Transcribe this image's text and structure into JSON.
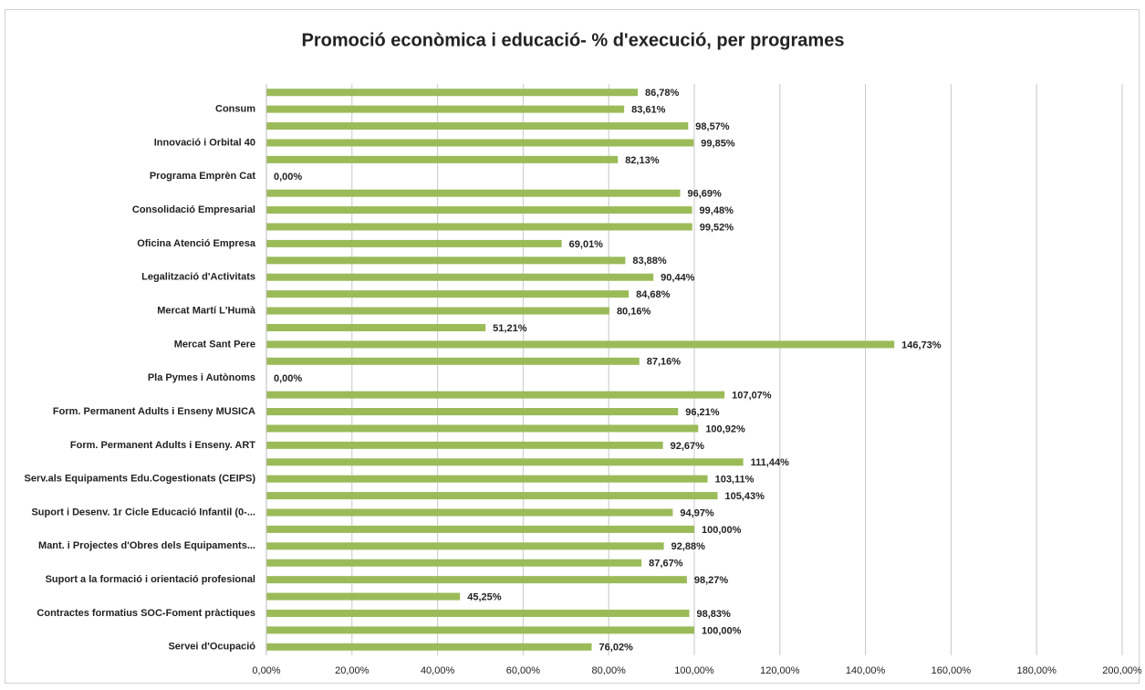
{
  "chart_data": {
    "type": "hbar",
    "title": "Promoció econòmica i educació-  % d'execució, per programes",
    "categories": [
      "Consum",
      "Innovació i Orbital 40",
      "Programa Emprèn Cat",
      "Consolidació Empresarial",
      "Oficina Atenció Empresa",
      "Legalització d'Activitats",
      "Mercat Martí L'Humà",
      "Mercat Sant Pere",
      "Pla Pymes i Autònoms",
      "Form. Permanent Adults i Enseny MUSICA",
      "Form. Permanent Adults i Enseny. ART",
      "Serv.als Equipaments Edu.Cogestionats (CEIPS)",
      "Suport i Desenv. 1r Cicle Educació Infantil (0-...",
      "Mant. i Projectes d'Obres dels Equipaments...",
      "Suport a la formació i orientació profesional",
      "Contractes formatius SOC-Foment pràctiques",
      "Servei d'Ocupació"
    ],
    "series": [
      {
        "color": "#9bbb59",
        "values": [
          86.78,
          98.57,
          82.13,
          96.69,
          99.52,
          83.88,
          84.68,
          51.21,
          87.16,
          107.07,
          100.92,
          111.44,
          105.43,
          100.0,
          87.67,
          45.25,
          100.0
        ],
        "value_labels": [
          "86,78%",
          "98,57%",
          "82,13%",
          "96,69%",
          "99,52%",
          "83,88%",
          "84,68%",
          "51,21%",
          "87,16%",
          "107,07%",
          "100,92%",
          "111,44%",
          "105,43%",
          "100,00%",
          "87,67%",
          "45,25%",
          "100,00%"
        ]
      },
      {
        "color": "#9bbb59",
        "values": [
          83.61,
          99.85,
          0.0,
          99.48,
          69.01,
          90.44,
          80.16,
          146.73,
          0.0,
          96.21,
          92.67,
          103.11,
          94.97,
          92.88,
          98.27,
          98.83,
          76.02
        ],
        "value_labels": [
          "83,61%",
          "99,85%",
          "0,00%",
          "99,48%",
          "69,01%",
          "90,44%",
          "80,16%",
          "146,73%",
          "0,00%",
          "96,21%",
          "92,67%",
          "103,11%",
          "94,97%",
          "92,88%",
          "98,27%",
          "98,83%",
          "76,02%"
        ]
      }
    ],
    "xlim": [
      0,
      200
    ],
    "xticks": [
      {
        "value": 0,
        "label": "0,00%"
      },
      {
        "value": 20,
        "label": "20,00%"
      },
      {
        "value": 40,
        "label": "40,00%"
      },
      {
        "value": 60,
        "label": "60,00%"
      },
      {
        "value": 80,
        "label": "80,00%"
      },
      {
        "value": 100,
        "label": "100,00%"
      },
      {
        "value": 120,
        "label": "120,00%"
      },
      {
        "value": 140,
        "label": "140,00%"
      },
      {
        "value": 160,
        "label": "160,00%"
      },
      {
        "value": 180,
        "label": "180,00%"
      },
      {
        "value": 200,
        "label": "200,00%"
      }
    ],
    "grid": true
  }
}
